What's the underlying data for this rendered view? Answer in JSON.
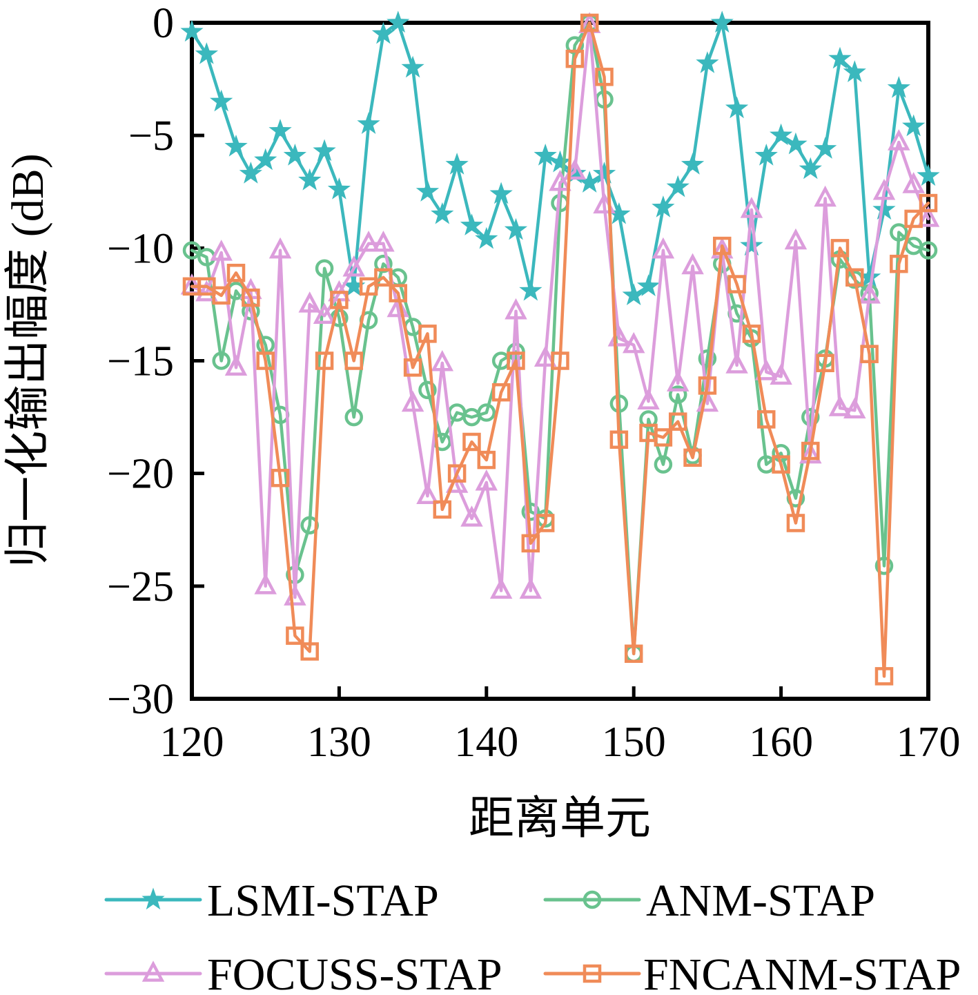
{
  "figure": {
    "background": "#ffffff",
    "axis_color": "#000000"
  },
  "chart_data": {
    "type": "line",
    "title": "",
    "xlabel": "距离单元",
    "ylabel": "归一化输出幅度 (dB)",
    "xlim": [
      120,
      170
    ],
    "ylim": [
      -30,
      0
    ],
    "grid": false,
    "tick_direction": "in",
    "legend_position": "below-chart, 2 columns x 2 rows",
    "x_ticks": [
      120,
      130,
      140,
      150,
      160,
      170
    ],
    "x_tick_labels": [
      "120",
      "130",
      "140",
      "150",
      "160",
      "170"
    ],
    "y_ticks": [
      0,
      -5,
      -10,
      -15,
      -20,
      -25,
      -30
    ],
    "y_tick_labels": [
      "0",
      "−5",
      "−10",
      "−15",
      "−20",
      "−25",
      "−30"
    ],
    "x": [
      120,
      121,
      122,
      123,
      124,
      125,
      126,
      127,
      128,
      129,
      130,
      131,
      132,
      133,
      134,
      135,
      136,
      137,
      138,
      139,
      140,
      141,
      142,
      143,
      144,
      145,
      146,
      147,
      148,
      149,
      150,
      151,
      152,
      153,
      154,
      155,
      156,
      157,
      158,
      159,
      160,
      161,
      162,
      163,
      164,
      165,
      166,
      167,
      168,
      169,
      170
    ],
    "series": [
      {
        "name": "LSMI-STAP",
        "color": "#3bb8bd",
        "marker": "star",
        "marker_filled": true,
        "values": [
          -0.4,
          -1.4,
          -3.5,
          -5.5,
          -6.7,
          -6.1,
          -4.8,
          -5.9,
          -7.0,
          -5.7,
          -7.4,
          -11.7,
          -4.5,
          -0.5,
          0.0,
          -2.0,
          -7.5,
          -8.5,
          -6.3,
          -9.0,
          -9.6,
          -7.6,
          -9.2,
          -11.9,
          -5.9,
          -6.2,
          -6.7,
          -7.1,
          -6.7,
          -8.5,
          -12.1,
          -11.7,
          -8.2,
          -7.3,
          -6.3,
          -1.8,
          0.0,
          -3.8,
          -9.9,
          -5.9,
          -5.0,
          -5.4,
          -6.5,
          -5.6,
          -1.6,
          -2.2,
          -11.3,
          -8.3,
          -2.9,
          -4.6,
          -6.8
        ]
      },
      {
        "name": "ANM-STAP",
        "color": "#69c28e",
        "marker": "circle",
        "marker_filled": false,
        "values": [
          -10.1,
          -10.4,
          -15.0,
          -11.9,
          -12.8,
          -14.3,
          -17.4,
          -24.5,
          -22.3,
          -10.9,
          -13.1,
          -17.5,
          -13.2,
          -10.7,
          -11.3,
          -13.5,
          -16.3,
          -18.6,
          -17.3,
          -17.5,
          -17.3,
          -15.0,
          -14.6,
          -21.7,
          -22.0,
          -8.0,
          -1.0,
          0.0,
          -3.4,
          -16.9,
          -28.0,
          -17.6,
          -19.6,
          -16.5,
          -19.2,
          -14.9,
          -10.7,
          -12.9,
          -14.0,
          -19.6,
          -19.1,
          -21.1,
          -17.5,
          -14.9,
          -10.5,
          -11.4,
          -12.0,
          -24.1,
          -9.3,
          -9.9,
          -10.1
        ]
      },
      {
        "name": "FOCUSS-STAP",
        "color": "#dc9ddc",
        "marker": "triangle",
        "marker_filled": false,
        "values": [
          -11.7,
          -12.0,
          -10.2,
          -15.3,
          -11.9,
          -25.0,
          -10.1,
          -25.5,
          -12.5,
          -13.0,
          -12.0,
          -10.9,
          -9.8,
          -9.8,
          -12.7,
          -16.9,
          -21.0,
          -15.1,
          -20.5,
          -22.0,
          -20.4,
          -25.2,
          -12.8,
          -25.2,
          -14.9,
          -7.1,
          -6.6,
          -0.1,
          -8.1,
          -14.0,
          -14.3,
          -16.8,
          -10.1,
          -16.0,
          -10.8,
          -16.9,
          -10.1,
          -15.2,
          -8.3,
          -15.5,
          -15.7,
          -9.7,
          -19.2,
          -7.8,
          -17.1,
          -17.2,
          -12.1,
          -7.5,
          -5.3,
          -7.2,
          -8.7
        ]
      },
      {
        "name": "FNCANM-STAP",
        "color": "#f08b58",
        "marker": "square",
        "marker_filled": false,
        "values": [
          -11.7,
          -11.7,
          -12.1,
          -11.1,
          -12.2,
          -15.0,
          -20.2,
          -27.2,
          -27.9,
          -15.0,
          -12.3,
          -15.0,
          -11.7,
          -11.3,
          -12.0,
          -15.3,
          -13.8,
          -21.6,
          -20.0,
          -18.6,
          -19.4,
          -16.4,
          -15.0,
          -23.1,
          -22.2,
          -15.0,
          -1.6,
          0.0,
          -2.4,
          -18.5,
          -28.0,
          -18.2,
          -18.4,
          -17.7,
          -19.3,
          -16.1,
          -9.9,
          -11.6,
          -13.8,
          -17.6,
          -19.6,
          -22.2,
          -19.0,
          -15.1,
          -10.0,
          -11.3,
          -14.7,
          -29.0,
          -10.7,
          -8.7,
          -8.0
        ]
      }
    ]
  }
}
